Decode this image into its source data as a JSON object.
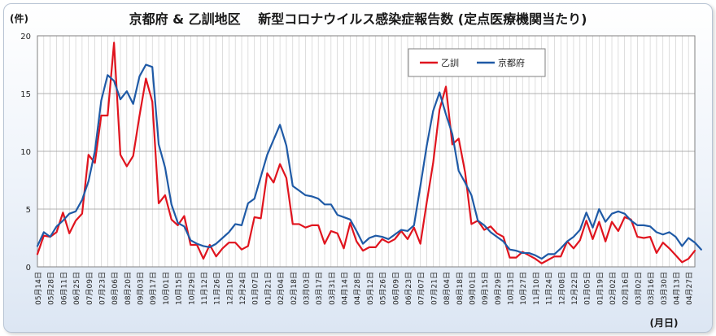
{
  "chart_data": {
    "type": "line",
    "title": "京都府 & 乙訓地区　 新型コロナウイルス感染症報告数 (定点医療機関当たり)",
    "ylabel": "(件)",
    "xlabel": "(月日)",
    "ylim": [
      0,
      20
    ],
    "yticks": [
      0,
      5,
      10,
      15,
      20
    ],
    "grid": true,
    "legend": "top-center",
    "x_tick_labels": [
      "05月14日",
      "05月28日",
      "06月11日",
      "06月25日",
      "07月09日",
      "07月23日",
      "08月06日",
      "08月20日",
      "09月03日",
      "09月17日",
      "10月01日",
      "10月15日",
      "10月29日",
      "11月12日",
      "11月26日",
      "12月10日",
      "12月24日",
      "01月07日",
      "01月21日",
      "02月04日",
      "02月18日",
      "03月03日",
      "03月17日",
      "03月31日",
      "04月14日",
      "04月28日",
      "05月12日",
      "05月26日",
      "06月09日",
      "06月23日",
      "07月07日",
      "07月21日",
      "08月04日",
      "08月18日",
      "09月01日",
      "09月15日",
      "09月29日",
      "10月13日",
      "10月27日",
      "11月10日",
      "11月24日",
      "12月08日",
      "12月22日",
      "01月05日",
      "01月19日",
      "02月02日",
      "02月16日",
      "03月02日",
      "03月16日",
      "03月30日",
      "04月13日",
      "04月27日"
    ],
    "series": [
      {
        "name": "乙訓",
        "color": "#e0141e",
        "values": [
          1.1,
          2.7,
          2.6,
          3.0,
          4.7,
          2.9,
          4.0,
          4.6,
          9.7,
          9.0,
          13.1,
          13.1,
          19.4,
          9.7,
          8.7,
          9.6,
          13.1,
          16.3,
          14.3,
          5.5,
          6.2,
          4.1,
          3.6,
          4.4,
          1.9,
          1.9,
          0.7,
          1.9,
          0.9,
          1.6,
          2.1,
          2.1,
          1.5,
          1.8,
          4.3,
          4.2,
          8.1,
          7.3,
          8.9,
          7.7,
          3.7,
          3.7,
          3.4,
          3.6,
          3.6,
          2.0,
          3.1,
          2.9,
          1.6,
          3.8,
          2.2,
          1.4,
          1.7,
          1.7,
          2.4,
          2.1,
          2.4,
          3.1,
          2.4,
          3.4,
          2.0,
          5.6,
          9.0,
          13.6,
          15.6,
          10.6,
          11.1,
          8.2,
          3.7,
          4.0,
          3.2,
          3.5,
          2.9,
          2.6,
          0.8,
          0.8,
          1.3,
          1.0,
          0.7,
          0.3,
          0.6,
          0.9,
          0.9,
          2.2,
          1.6,
          2.3,
          4.0,
          2.4,
          3.9,
          2.2,
          3.9,
          3.1,
          4.3,
          4.1,
          2.6,
          2.5,
          2.6,
          1.2,
          2.1,
          1.6,
          1.0,
          0.4,
          0.7,
          1.4
        ]
      },
      {
        "name": "京都府",
        "color": "#1f5aa6",
        "values": [
          1.8,
          3.0,
          2.6,
          3.5,
          4.0,
          4.6,
          4.8,
          5.8,
          7.4,
          10.0,
          14.4,
          16.6,
          16.1,
          14.5,
          15.2,
          14.1,
          16.5,
          17.5,
          17.3,
          10.6,
          8.6,
          5.4,
          3.8,
          3.5,
          2.3,
          2.0,
          1.8,
          1.7,
          2.0,
          2.5,
          3.0,
          3.7,
          3.6,
          5.5,
          5.9,
          7.8,
          9.7,
          11.0,
          12.3,
          10.5,
          7.0,
          6.6,
          6.2,
          6.1,
          5.9,
          5.4,
          5.4,
          4.5,
          4.3,
          4.1,
          3.1,
          2.0,
          2.5,
          2.7,
          2.6,
          2.4,
          2.8,
          3.2,
          3.1,
          3.6,
          7.0,
          10.5,
          13.5,
          15.1,
          13.2,
          11.5,
          8.3,
          7.3,
          6.2,
          4.0,
          3.6,
          3.0,
          2.6,
          2.2,
          1.5,
          1.4,
          1.2,
          1.2,
          1.0,
          0.7,
          1.1,
          1.1,
          1.6,
          2.2,
          2.6,
          3.2,
          4.7,
          3.4,
          5.0,
          3.9,
          4.6,
          4.8,
          4.6,
          4.0,
          3.6,
          3.6,
          3.5,
          3.0,
          2.8,
          3.0,
          2.6,
          1.8,
          2.5,
          2.1,
          1.5
        ]
      }
    ]
  }
}
